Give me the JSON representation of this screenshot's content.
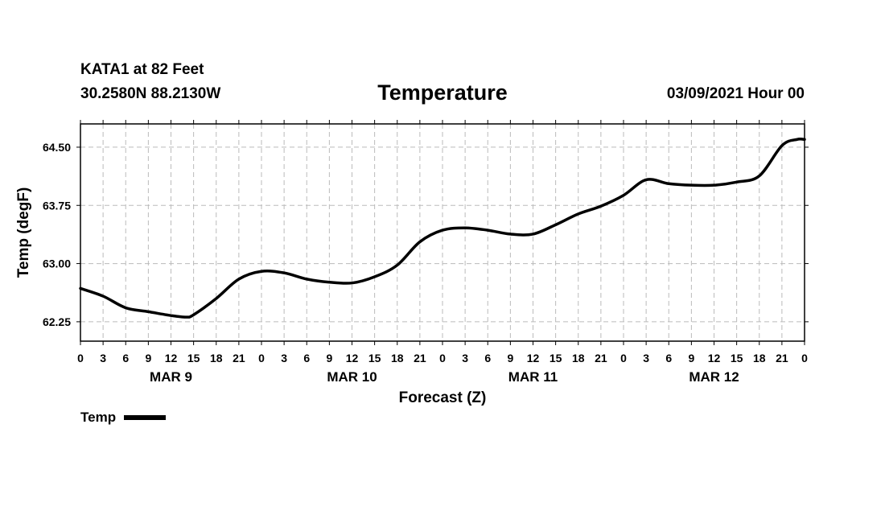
{
  "header": {
    "station": "KATA1 at 82 Feet",
    "coords": "30.2580N 88.2130W",
    "title": "Temperature",
    "datetime": "03/09/2021 Hour 00"
  },
  "legend": {
    "label": "Temp"
  },
  "colors": {
    "line": "#000000",
    "grid": "#bbbbbb",
    "axis": "#000000"
  },
  "chart_data": {
    "type": "line",
    "title": "Temperature",
    "xlabel": "Forecast (Z)",
    "ylabel": "Temp (degF)",
    "ylim": [
      62.0,
      64.8
    ],
    "yticks": [
      62.25,
      63.0,
      63.75,
      64.5
    ],
    "ytick_labels": [
      "62.25",
      "63.00",
      "63.75",
      "64.50"
    ],
    "xlim": [
      0,
      96
    ],
    "xticks": [
      0,
      3,
      6,
      9,
      12,
      15,
      18,
      21,
      24,
      27,
      30,
      33,
      36,
      39,
      42,
      45,
      48,
      51,
      54,
      57,
      60,
      63,
      66,
      69,
      72,
      75,
      78,
      81,
      84,
      87,
      90,
      93,
      96
    ],
    "xtick_labels": [
      "0",
      "3",
      "6",
      "9",
      "12",
      "15",
      "18",
      "21",
      "0",
      "3",
      "6",
      "9",
      "12",
      "15",
      "18",
      "21",
      "0",
      "3",
      "6",
      "9",
      "12",
      "15",
      "18",
      "21",
      "0",
      "3",
      "6",
      "9",
      "12",
      "15",
      "18",
      "21",
      "0"
    ],
    "day_labels": [
      {
        "label": "MAR 9",
        "x": 12
      },
      {
        "label": "MAR 10",
        "x": 36
      },
      {
        "label": "MAR 11",
        "x": 60
      },
      {
        "label": "MAR 12",
        "x": 84
      }
    ],
    "grid": true,
    "series": [
      {
        "name": "Temp",
        "x": [
          0,
          3,
          6,
          9,
          12,
          14,
          15,
          18,
          21,
          24,
          27,
          30,
          33,
          36,
          39,
          42,
          45,
          48,
          51,
          54,
          57,
          60,
          63,
          66,
          69,
          72,
          75,
          78,
          81,
          84,
          87,
          90,
          93,
          95,
          96
        ],
        "values": [
          62.68,
          62.58,
          62.43,
          62.38,
          62.33,
          62.31,
          62.34,
          62.55,
          62.8,
          62.9,
          62.88,
          62.8,
          62.76,
          62.75,
          62.83,
          62.98,
          63.28,
          63.43,
          63.46,
          63.43,
          63.38,
          63.38,
          63.5,
          63.64,
          63.74,
          63.88,
          64.08,
          64.03,
          64.01,
          64.01,
          64.05,
          64.13,
          64.52,
          64.6,
          64.6
        ]
      }
    ]
  }
}
